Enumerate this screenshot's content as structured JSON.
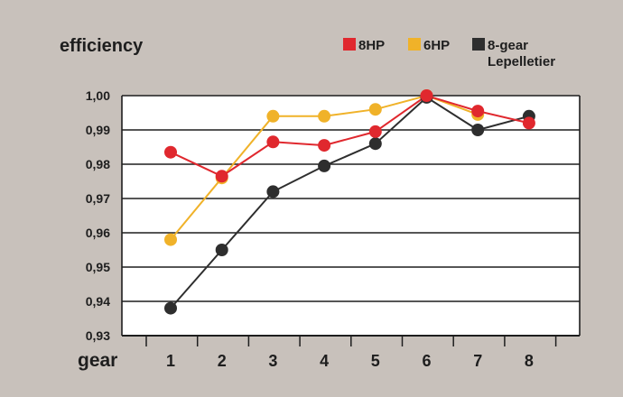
{
  "chart_data": {
    "type": "line",
    "title": "efficiency",
    "xlabel": "gear",
    "ylabel": "",
    "categories": [
      "1",
      "2",
      "3",
      "4",
      "5",
      "6",
      "7",
      "8"
    ],
    "y_tick_labels": [
      "0,93",
      "0,94",
      "0,95",
      "0,96",
      "0,97",
      "0,98",
      "0,99",
      "1,00"
    ],
    "ylim": [
      0.93,
      1.0
    ],
    "grid": true,
    "legend_position": "top-right",
    "series": [
      {
        "name": "8HP",
        "color": "#e0282e",
        "marker": "circle",
        "values": [
          0.9835,
          0.9765,
          0.9865,
          0.9855,
          0.9895,
          1.0,
          0.9955,
          0.992
        ]
      },
      {
        "name": "6HP",
        "color": "#f0b229",
        "marker": "circle",
        "values": [
          0.958,
          0.976,
          0.994,
          0.994,
          0.996,
          1.0,
          0.9945,
          null
        ]
      },
      {
        "name": "8-gear Lepelletier",
        "color": "#2e2e2e",
        "marker": "circle",
        "values": [
          0.938,
          0.955,
          0.972,
          0.9795,
          0.986,
          0.9995,
          0.99,
          0.994
        ]
      }
    ]
  }
}
